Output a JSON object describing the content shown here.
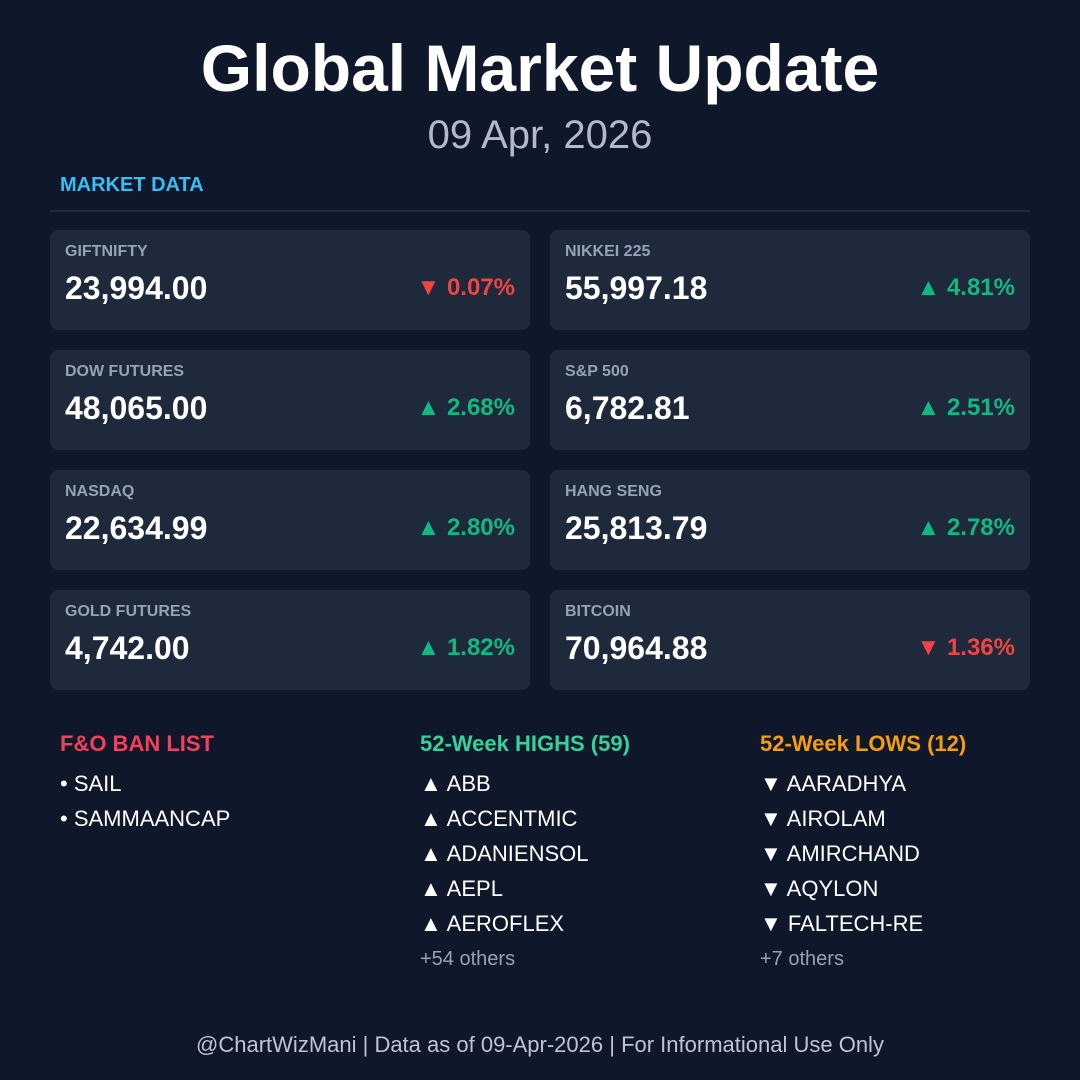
{
  "header": {
    "title": "Global Market Update",
    "date": "09 Apr, 2026"
  },
  "section_title": "MARKET DATA",
  "cards": [
    {
      "name": "GIFTNIFTY",
      "value": "23,994.00",
      "change": "▼ 0.07%",
      "color": "#ef4444"
    },
    {
      "name": "NIKKEI 225",
      "value": "55,997.18",
      "change": "▲ 4.81%",
      "color": "#10b981"
    },
    {
      "name": "DOW FUTURES",
      "value": "48,065.00",
      "change": "▲ 2.68%",
      "color": "#10b981"
    },
    {
      "name": "S&P 500",
      "value": "6,782.81",
      "change": "▲ 2.51%",
      "color": "#10b981"
    },
    {
      "name": "NASDAQ",
      "value": "22,634.99",
      "change": "▲ 2.80%",
      "color": "#10b981"
    },
    {
      "name": "HANG SENG",
      "value": "25,813.79",
      "change": "▲ 2.78%",
      "color": "#10b981"
    },
    {
      "name": "GOLD FUTURES",
      "value": "4,742.00",
      "change": "▲ 1.82%",
      "color": "#10b981"
    },
    {
      "name": "BITCOIN",
      "value": "70,964.88",
      "change": "▼ 1.36%",
      "color": "#ef4444"
    }
  ],
  "lists": [
    {
      "title": "F&O BAN LIST",
      "color": "#f43f5e",
      "items": [
        "• SAIL",
        "• SAMMAANCAP"
      ]
    },
    {
      "title": "52-Week HIGHS (59)",
      "color": "#34d399",
      "items": [
        "▲ ABB",
        "▲ ACCENTMIC",
        "▲ ADANIENSOL",
        "▲ AEPL",
        "▲ AEROFLEX"
      ],
      "more": "+54 others"
    },
    {
      "title": "52-Week LOWS (12)",
      "color": "#f59e0b",
      "items": [
        "▼ AARADHYA",
        "▼ AIROLAM",
        "▼ AMIRCHAND",
        "▼ AQYLON",
        "▼ FALTECH-RE"
      ],
      "more": "+7 others"
    }
  ],
  "footer": "@ChartWizMani | Data as of 09-Apr-2026 | For Informational Use Only"
}
